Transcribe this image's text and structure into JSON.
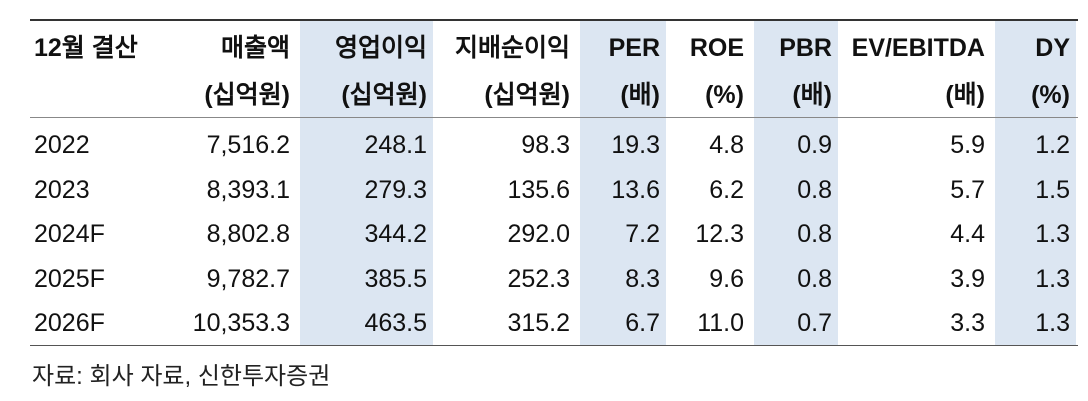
{
  "table": {
    "header": [
      [
        "12월 결산"
      ],
      [
        "매출액",
        "(십억원)"
      ],
      [
        "영업이익",
        "(십억원)"
      ],
      [
        "지배순이익",
        "(십억원)"
      ],
      [
        "PER",
        "(배)"
      ],
      [
        "ROE",
        "(%)"
      ],
      [
        "PBR",
        "(배)"
      ],
      [
        "EV/EBITDA",
        "(배)"
      ],
      [
        "DY",
        "(%)"
      ]
    ],
    "rows": [
      [
        "2022",
        "7,516.2",
        "248.1",
        "98.3",
        "19.3",
        "4.8",
        "0.9",
        "5.9",
        "1.2"
      ],
      [
        "2023",
        "8,393.1",
        "279.3",
        "135.6",
        "13.6",
        "6.2",
        "0.8",
        "5.7",
        "1.5"
      ],
      [
        "2024F",
        "8,802.8",
        "344.2",
        "292.0",
        "7.2",
        "12.3",
        "0.8",
        "4.4",
        "1.3"
      ],
      [
        "2025F",
        "9,782.7",
        "385.5",
        "252.3",
        "8.3",
        "9.6",
        "0.8",
        "3.9",
        "1.3"
      ],
      [
        "2026F",
        "10,353.3",
        "463.5",
        "315.2",
        "6.7",
        "11.0",
        "0.7",
        "3.3",
        "1.3"
      ]
    ]
  },
  "source": "자료: 회사 자료, 신한투자증권"
}
